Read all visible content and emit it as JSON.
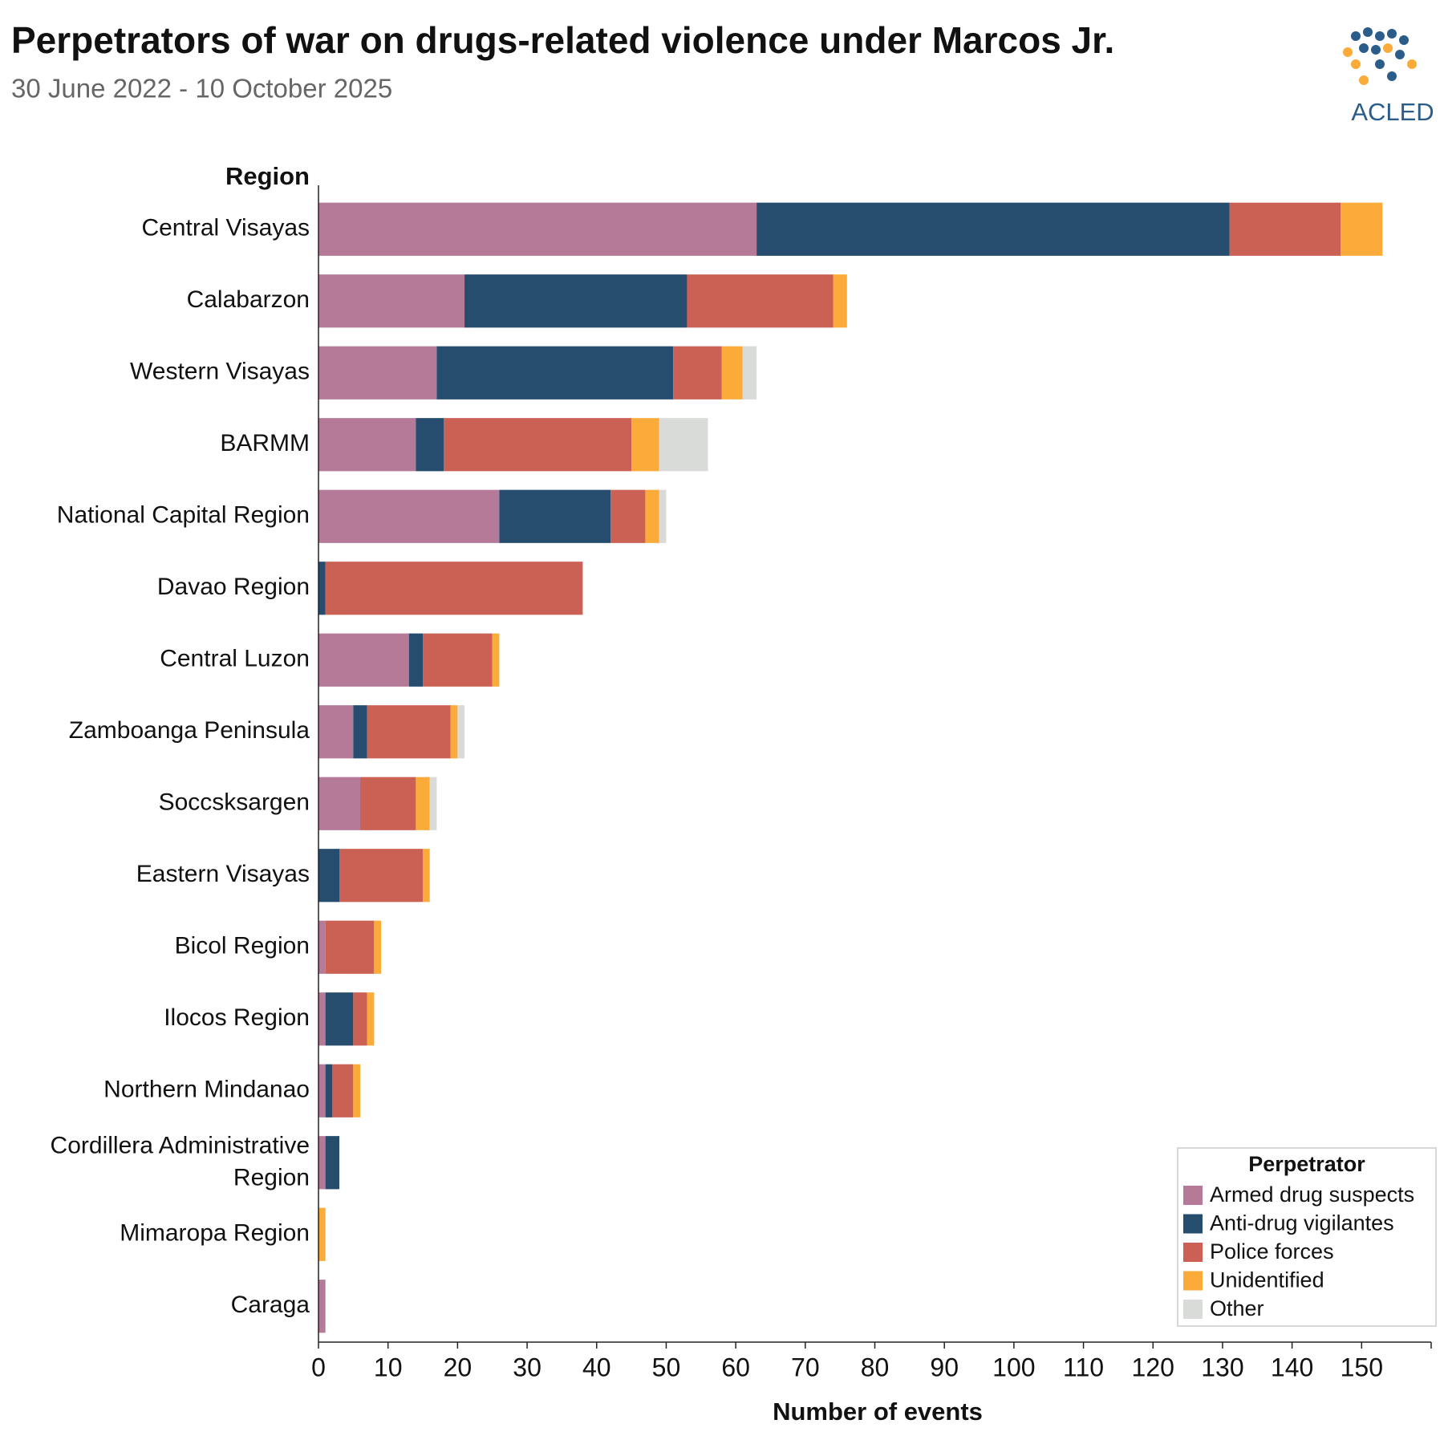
{
  "chart_data": {
    "type": "stacked_barh",
    "title": "Perpetrators of war on drugs-related violence under Marcos Jr.",
    "subtitle": "30 June 2022 - 10 October 2025",
    "logo_text": "ACLED",
    "y_axis_title": "Region",
    "x_axis_title": "Number of events",
    "legend_title": "Perpetrator",
    "legend_position": "lower right",
    "categories": [
      "Central Visayas",
      "Calabarzon",
      "Western Visayas",
      "BARMM",
      "National Capital Region",
      "Davao Region",
      "Central Luzon",
      "Zamboanga Peninsula",
      "Soccsksargen",
      "Eastern Visayas",
      "Bicol Region",
      "Ilocos Region",
      "Northern Mindanao",
      "Cordillera Administrative Region",
      "Mimaropa Region",
      "Caraga"
    ],
    "series": [
      {
        "name": "Armed drug suspects",
        "color": "#b47a98",
        "values": [
          63,
          21,
          17,
          14,
          26,
          0,
          13,
          5,
          6,
          0,
          1,
          1,
          1,
          1,
          0,
          1
        ]
      },
      {
        "name": "Anti-drug vigilantes",
        "color": "#264c6e",
        "values": [
          68,
          32,
          34,
          4,
          16,
          1,
          2,
          2,
          0,
          3,
          0,
          4,
          1,
          2,
          0,
          0
        ]
      },
      {
        "name": "Police forces",
        "color": "#cb6155",
        "values": [
          16,
          21,
          7,
          27,
          5,
          37,
          10,
          12,
          8,
          12,
          7,
          2,
          3,
          0,
          0,
          0
        ]
      },
      {
        "name": "Unidentified",
        "color": "#fbab3a",
        "values": [
          6,
          2,
          3,
          4,
          2,
          0,
          1,
          1,
          2,
          1,
          1,
          1,
          1,
          0,
          1,
          0
        ]
      },
      {
        "name": "Other",
        "color": "#d9dbd8",
        "values": [
          0,
          0,
          2,
          7,
          1,
          0,
          0,
          1,
          1,
          0,
          0,
          0,
          0,
          0,
          0,
          0
        ]
      }
    ],
    "xlim": [
      0,
      160
    ],
    "xticks": [
      0,
      10,
      20,
      30,
      40,
      50,
      60,
      70,
      80,
      90,
      100,
      110,
      120,
      130,
      140,
      150
    ]
  }
}
